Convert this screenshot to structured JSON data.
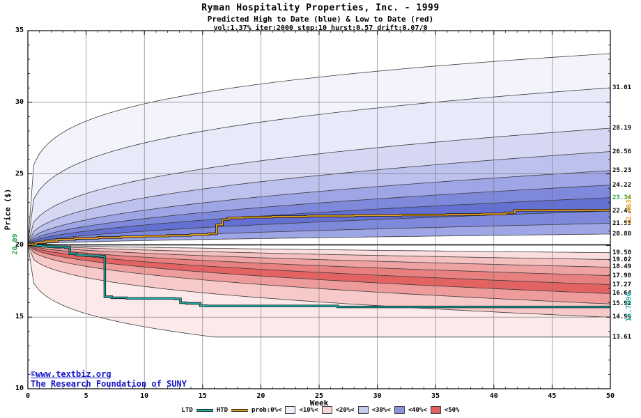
{
  "footer": {
    "site": "©www.textbiz.org",
    "org": "The Research Foundation of SUNY"
  },
  "legend": {
    "tokens": [
      {
        "kind": "label",
        "text": "LTD"
      },
      {
        "kind": "line",
        "color": "#20b2aa"
      },
      {
        "kind": "label",
        "text": "HTD"
      },
      {
        "kind": "line",
        "color": "#eaa21e"
      },
      {
        "kind": "label",
        "text": "prob:0%<"
      },
      {
        "kind": "box",
        "color": "#ededf8"
      },
      {
        "kind": "label",
        "text": "<10%<"
      },
      {
        "kind": "box",
        "color": "#f5d6d6"
      },
      {
        "kind": "label",
        "text": "<20%<"
      },
      {
        "kind": "box",
        "color": "#c5caee"
      },
      {
        "kind": "label",
        "text": "<30%<"
      },
      {
        "kind": "box",
        "color": "#8a93dc"
      },
      {
        "kind": "label",
        "text": "<40%<"
      },
      {
        "kind": "box",
        "color": "#e05f5f"
      },
      {
        "kind": "label",
        "text": "<50%"
      }
    ]
  },
  "chart_data": {
    "type": "area",
    "title": "Ryman Hospitality Properties, Inc.  - 1999",
    "subtitle": "Predicted High to Date (blue) &  Low to Date (red)",
    "params": "vol:1.37% iter:2000 step:10 hurst:0.57 drift:0.07/0",
    "xlabel": "Week",
    "ylabel": "Price ($)",
    "xlim": [
      0,
      50
    ],
    "ylim": [
      10,
      35
    ],
    "x_ticks": [
      0,
      5,
      10,
      15,
      20,
      25,
      30,
      35,
      40,
      45,
      50
    ],
    "y_ticks": [
      10,
      15,
      20,
      25,
      30,
      35
    ],
    "start_price": 20.09,
    "start_price_label": "20.09",
    "htd_final": 22.4634,
    "htd_final_label": "22.4634",
    "ltd_final": 15.7096,
    "ltd_final_label": "15.7096",
    "accent_green": "#1fa148",
    "htd_color": "#eaa21e",
    "ltd_color": "#20b2aa",
    "grid_color": "#6e6e6e",
    "boundary_color": "#3a3a3a",
    "high_boundaries": [
      {
        "end": 33.4,
        "exp": 0.19,
        "label": ""
      },
      {
        "end": 31.01,
        "exp": 0.27,
        "label": "31.01"
      },
      {
        "end": 28.19,
        "exp": 0.36,
        "label": "28.19"
      },
      {
        "end": 26.56,
        "exp": 0.43,
        "label": "26.56"
      },
      {
        "end": 25.23,
        "exp": 0.48,
        "label": "25.23"
      },
      {
        "end": 24.22,
        "exp": 0.52,
        "label": "24.22"
      },
      {
        "end": 23.34,
        "exp": 0.55,
        "label": "23.34",
        "label_color": "#1fa148"
      },
      {
        "end": 22.41,
        "exp": 0.58,
        "label": "22.41"
      },
      {
        "end": 21.55,
        "exp": 0.61,
        "label": "21.55"
      },
      {
        "end": 20.8,
        "exp": 0.64,
        "label": "20.80"
      }
    ],
    "high_fills": [
      "#f3f3fc",
      "#e8e9f9",
      "#d6d8f3",
      "#bcc1ee",
      "#9ea6e6",
      "#7f89db",
      "#6470d2",
      "#7f89db",
      "#9ea6e6"
    ],
    "low_boundaries": [
      {
        "end": 19.5,
        "exp": 0.64,
        "label": "19.50"
      },
      {
        "end": 19.02,
        "exp": 0.61,
        "label": "19.02"
      },
      {
        "end": 18.49,
        "exp": 0.58,
        "label": "18.49"
      },
      {
        "end": 17.9,
        "exp": 0.55,
        "label": "17.90"
      },
      {
        "end": 17.27,
        "exp": 0.52,
        "label": "17.27"
      },
      {
        "end": 16.64,
        "exp": 0.48,
        "label": "16.64"
      },
      {
        "end": 15.92,
        "exp": 0.43,
        "label": "15.92"
      },
      {
        "end": 14.99,
        "exp": 0.34,
        "label": "14.99"
      },
      {
        "end": 13.61,
        "exp": 0.25,
        "t0": 16,
        "label": "13.61"
      }
    ],
    "low_fills": [
      "#fadddd",
      "#f5c0c0",
      "#efa2a2",
      "#e88080",
      "#e36363",
      "#ee9b9b",
      "#f7c9c9",
      "#fce9e9"
    ],
    "htd_steps": [
      [
        0,
        20.09
      ],
      [
        0.7,
        20.2
      ],
      [
        1.5,
        20.3
      ],
      [
        2.5,
        20.42
      ],
      [
        4,
        20.5
      ],
      [
        6,
        20.56
      ],
      [
        8,
        20.61
      ],
      [
        10,
        20.66
      ],
      [
        12,
        20.71
      ],
      [
        14,
        20.76
      ],
      [
        15.5,
        20.82
      ],
      [
        16.2,
        21.45
      ],
      [
        16.7,
        21.8
      ],
      [
        17.2,
        21.92
      ],
      [
        18.5,
        21.98
      ],
      [
        21,
        22.02
      ],
      [
        24,
        22.06
      ],
      [
        28,
        22.1
      ],
      [
        32,
        22.13
      ],
      [
        36,
        22.17
      ],
      [
        39,
        22.2
      ],
      [
        41,
        22.28
      ],
      [
        41.8,
        22.4634
      ],
      [
        50,
        22.4634
      ]
    ],
    "ltd_steps": [
      [
        0,
        20.09
      ],
      [
        0.6,
        20.0
      ],
      [
        1.2,
        19.95
      ],
      [
        2,
        19.91
      ],
      [
        3.2,
        19.88
      ],
      [
        3.6,
        19.42
      ],
      [
        4.2,
        19.33
      ],
      [
        5,
        19.28
      ],
      [
        6.2,
        19.24
      ],
      [
        6.6,
        16.42
      ],
      [
        7.2,
        16.35
      ],
      [
        8.5,
        16.31
      ],
      [
        12.6,
        16.28
      ],
      [
        13.1,
        16.0
      ],
      [
        13.6,
        15.96
      ],
      [
        14.8,
        15.8
      ],
      [
        15.3,
        15.78
      ],
      [
        26,
        15.78
      ],
      [
        26.6,
        15.7096
      ],
      [
        50,
        15.7096
      ]
    ]
  }
}
